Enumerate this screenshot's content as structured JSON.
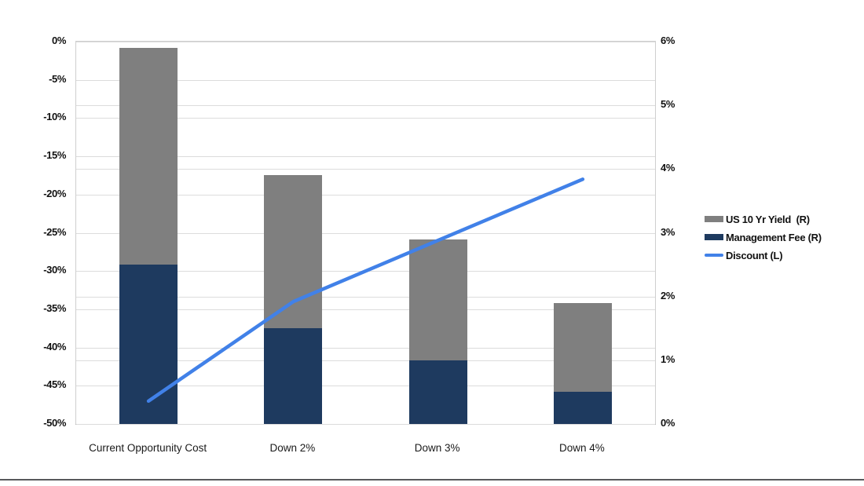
{
  "chart_data": {
    "type": "bar",
    "subtype": "stacked-bar-with-line-combo",
    "title": "",
    "categories": [
      "Current Opportunity Cost",
      "Down 2%",
      "Down 3%",
      "Down 4%"
    ],
    "series": [
      {
        "id": "yield",
        "name": "US 10 Yr Yield  (R)",
        "kind": "bar",
        "axis": "right",
        "stack_order": 1,
        "values": [
          3.4,
          2.4,
          1.9,
          1.4
        ],
        "color": "#7f7f7f"
      },
      {
        "id": "fee",
        "name": "Management Fee (R)",
        "kind": "bar",
        "axis": "right",
        "stack_order": 0,
        "values": [
          2.5,
          1.5,
          1.0,
          0.5
        ],
        "color": "#1e3a5f"
      },
      {
        "id": "discount",
        "name": "Discount (L)",
        "kind": "line",
        "axis": "left",
        "values": [
          -47,
          -34,
          -26,
          -18
        ],
        "color": "#4181e8"
      }
    ],
    "left_axis": {
      "ticks": [
        "0%",
        "-5%",
        "-10%",
        "-15%",
        "-20%",
        "-25%",
        "-30%",
        "-35%",
        "-40%",
        "-45%",
        "-50%"
      ],
      "min": -50,
      "max": 0
    },
    "right_axis": {
      "ticks": [
        "6%",
        "5%",
        "4%",
        "3%",
        "2%",
        "1%",
        "0%"
      ],
      "min": 0,
      "max": 6
    },
    "grid": true,
    "legend_position": "right"
  },
  "colors": {
    "gridline": "#dcdcdc",
    "axis_text": "#111111",
    "footer_rule": "#58595b",
    "background": "#ffffff"
  }
}
